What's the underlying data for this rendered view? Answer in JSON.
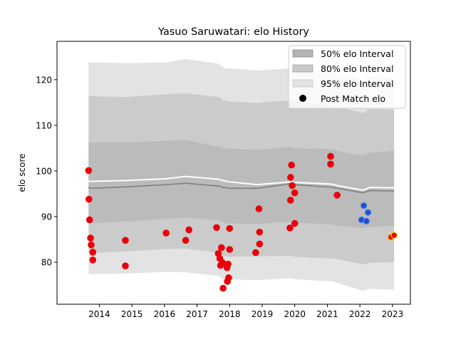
{
  "chart_data": {
    "type": "area",
    "title": "Yasuo Saruwatari: elo History",
    "xlabel": "",
    "ylabel": "elo score",
    "xlim": [
      2012.7,
      2023.55
    ],
    "ylim": [
      70.8,
      128.4
    ],
    "x_ticks": [
      2014,
      2015,
      2016,
      2017,
      2018,
      2019,
      2020,
      2021,
      2022,
      2023
    ],
    "y_ticks": [
      80,
      90,
      100,
      110,
      120
    ],
    "legend": {
      "placement": "top-right",
      "entries": [
        {
          "label": "50% elo Interval",
          "color": "#b3b3b3"
        },
        {
          "label": "80% elo Interval",
          "color": "#c8c8c8"
        },
        {
          "label": "95% elo Interval",
          "color": "#e3e3e3"
        },
        {
          "label": "Post Match elo",
          "color": "#000000"
        }
      ]
    },
    "timeline_x": [
      2013.67,
      2013.72,
      2014.8,
      2016.05,
      2016.65,
      2017.65,
      2017.75,
      2017.8,
      2017.87,
      2018.0,
      2018.85,
      2019.87,
      2020.0,
      2021.15,
      2021.3,
      2022.1,
      2022.3,
      2023.05
    ],
    "median": [
      96.5,
      96.2,
      96.5,
      97.0,
      97.3,
      96.7,
      96.6,
      96.3,
      96.4,
      96.2,
      96.2,
      97.2,
      97.0,
      96.4,
      96.2,
      95.2,
      95.7,
      95.6
    ],
    "mean": [
      97.8,
      97.7,
      97.9,
      98.3,
      98.8,
      98.2,
      98.0,
      97.9,
      97.8,
      97.6,
      97.0,
      97.6,
      97.5,
      97.1,
      96.8,
      95.8,
      96.4,
      96.3
    ],
    "band_50_low": [
      88.5,
      88.5,
      88.9,
      89.5,
      89.8,
      89.2,
      89.0,
      88.8,
      88.6,
      88.5,
      88.4,
      88.9,
      88.7,
      88.3,
      88.0,
      87.5,
      87.7,
      88.0
    ],
    "band_50_high": [
      106.5,
      106.2,
      106.2,
      106.6,
      106.8,
      105.3,
      105.3,
      105.0,
      104.8,
      104.9,
      104.6,
      105.3,
      105.0,
      104.8,
      104.4,
      103.3,
      104.0,
      104.4
    ],
    "band_80_low": [
      82.0,
      82.0,
      82.4,
      82.9,
      83.0,
      82.1,
      81.5,
      81.4,
      81.3,
      81.2,
      81.3,
      81.4,
      81.2,
      80.8,
      80.7,
      79.5,
      79.9,
      80.0
    ],
    "band_80_high": [
      116.5,
      116.4,
      116.2,
      116.8,
      117.0,
      116.2,
      116.0,
      115.4,
      115.4,
      115.2,
      114.9,
      115.5,
      115.2,
      114.3,
      114.1,
      112.7,
      113.6,
      113.4
    ],
    "band_95_low": [
      77.3,
      77.4,
      77.5,
      77.9,
      77.8,
      77.0,
      76.6,
      76.3,
      76.2,
      76.2,
      76.1,
      76.5,
      76.3,
      75.8,
      75.5,
      73.7,
      74.2,
      74.0
    ],
    "band_95_high": [
      123.8,
      123.8,
      123.6,
      123.8,
      124.5,
      123.5,
      123.0,
      122.8,
      122.4,
      122.5,
      122.0,
      122.5,
      122.3,
      121.7,
      121.4,
      120.0,
      120.7,
      120.5
    ],
    "post_match_elo": [
      {
        "x": 2013.67,
        "y": 100.1,
        "color": "#e8000b"
      },
      {
        "x": 2013.68,
        "y": 93.8,
        "color": "#e8000b"
      },
      {
        "x": 2013.7,
        "y": 89.3,
        "color": "#e8000b"
      },
      {
        "x": 2013.73,
        "y": 85.3,
        "color": "#e8000b"
      },
      {
        "x": 2013.75,
        "y": 83.8,
        "color": "#e8000b"
      },
      {
        "x": 2013.8,
        "y": 82.2,
        "color": "#e8000b"
      },
      {
        "x": 2013.8,
        "y": 80.5,
        "color": "#e8000b"
      },
      {
        "x": 2014.8,
        "y": 84.8,
        "color": "#e8000b"
      },
      {
        "x": 2014.8,
        "y": 79.2,
        "color": "#e8000b"
      },
      {
        "x": 2016.05,
        "y": 86.4,
        "color": "#e8000b"
      },
      {
        "x": 2016.65,
        "y": 84.8,
        "color": "#e8000b"
      },
      {
        "x": 2016.75,
        "y": 87.1,
        "color": "#e8000b"
      },
      {
        "x": 2017.6,
        "y": 87.6,
        "color": "#e8000b"
      },
      {
        "x": 2017.65,
        "y": 81.9,
        "color": "#e8000b"
      },
      {
        "x": 2017.7,
        "y": 80.8,
        "color": "#e8000b"
      },
      {
        "x": 2017.72,
        "y": 79.3,
        "color": "#e8000b"
      },
      {
        "x": 2017.75,
        "y": 83.2,
        "color": "#e8000b"
      },
      {
        "x": 2017.78,
        "y": 79.9,
        "color": "#e8000b"
      },
      {
        "x": 2017.8,
        "y": 74.3,
        "color": "#e8000b"
      },
      {
        "x": 2017.92,
        "y": 78.8,
        "color": "#e8000b"
      },
      {
        "x": 2017.93,
        "y": 75.8,
        "color": "#e8000b"
      },
      {
        "x": 2017.95,
        "y": 79.6,
        "color": "#e8000b"
      },
      {
        "x": 2017.97,
        "y": 76.6,
        "color": "#e8000b"
      },
      {
        "x": 2018.0,
        "y": 87.4,
        "color": "#e8000b"
      },
      {
        "x": 2018.0,
        "y": 82.8,
        "color": "#e8000b"
      },
      {
        "x": 2018.8,
        "y": 82.1,
        "color": "#e8000b"
      },
      {
        "x": 2018.9,
        "y": 91.7,
        "color": "#e8000b"
      },
      {
        "x": 2018.92,
        "y": 86.6,
        "color": "#e8000b"
      },
      {
        "x": 2018.92,
        "y": 84.0,
        "color": "#e8000b"
      },
      {
        "x": 2019.85,
        "y": 87.5,
        "color": "#e8000b"
      },
      {
        "x": 2019.87,
        "y": 98.6,
        "color": "#e8000b"
      },
      {
        "x": 2019.87,
        "y": 93.6,
        "color": "#e8000b"
      },
      {
        "x": 2019.9,
        "y": 101.3,
        "color": "#e8000b"
      },
      {
        "x": 2019.92,
        "y": 96.8,
        "color": "#e8000b"
      },
      {
        "x": 2020.0,
        "y": 95.2,
        "color": "#e8000b"
      },
      {
        "x": 2020.0,
        "y": 88.5,
        "color": "#e8000b"
      },
      {
        "x": 2021.1,
        "y": 103.2,
        "color": "#e8000b"
      },
      {
        "x": 2021.1,
        "y": 101.5,
        "color": "#e8000b"
      },
      {
        "x": 2021.3,
        "y": 94.7,
        "color": "#e8000b"
      },
      {
        "x": 2022.05,
        "y": 89.3,
        "color": "#1f4fd0"
      },
      {
        "x": 2022.12,
        "y": 92.4,
        "color": "#1f4fd0"
      },
      {
        "x": 2022.2,
        "y": 89.0,
        "color": "#1f4fd0"
      },
      {
        "x": 2022.25,
        "y": 90.9,
        "color": "#1f4fd0"
      },
      {
        "x": 2022.95,
        "y": 85.5,
        "color": "#e8000b"
      },
      {
        "x": 2023.05,
        "y": 85.9,
        "color": "#e8000b"
      }
    ]
  }
}
